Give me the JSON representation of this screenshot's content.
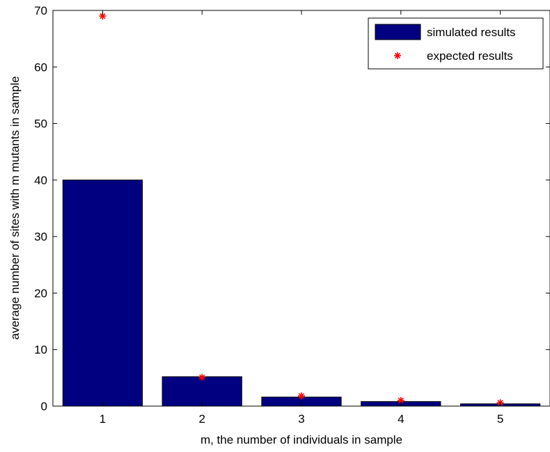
{
  "chart_data": {
    "type": "bar",
    "title": "",
    "xlabel": "m, the number of individuals in sample",
    "ylabel": "average number of sites with m mutants in sample",
    "categories": [
      "1",
      "2",
      "3",
      "4",
      "5"
    ],
    "x": [
      1,
      2,
      3,
      4,
      5
    ],
    "xlim": [
      0.5,
      5.5
    ],
    "ylim": [
      0,
      70
    ],
    "yticks": [
      0,
      10,
      20,
      30,
      40,
      50,
      60,
      70
    ],
    "grid": false,
    "legend_position": "top-right",
    "series": [
      {
        "name": "simulated results",
        "kind": "bar",
        "color": "#000080",
        "values": [
          40,
          5.2,
          1.6,
          0.8,
          0.4
        ]
      },
      {
        "name": "expected results",
        "kind": "marker",
        "marker": "asterisk",
        "color": "#ff0000",
        "values": [
          69,
          5.1,
          1.8,
          1.0,
          0.6
        ]
      }
    ]
  }
}
